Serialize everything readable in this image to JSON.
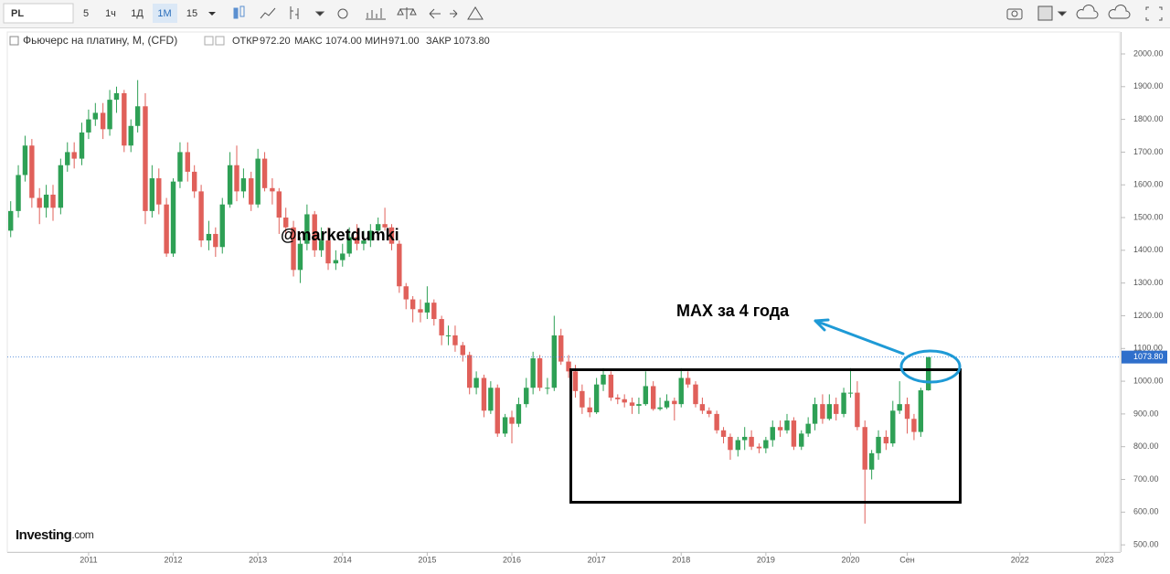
{
  "toolbar": {
    "symbol": "PL",
    "intervals": [
      "5",
      "1ч",
      "1Д",
      "1М",
      "15"
    ]
  },
  "header": {
    "title": "Фьючерс на платину, M, (CFD)",
    "ohlc": [
      {
        "label": "ОТКР",
        "value": "972.20"
      },
      {
        "label": "МАКС",
        "value": "1074.00"
      },
      {
        "label": "МИН",
        "value": "971.00"
      },
      {
        "label": "ЗАКР",
        "value": "1073.80"
      }
    ]
  },
  "logo": {
    "name": "Investing",
    "suffix": ".com"
  },
  "chart_data": {
    "type": "candlestick",
    "annotations": [
      "@marketdumki",
      "MAX за 4 года"
    ],
    "up_color": "#2ea055",
    "down_color": "#e0605a",
    "current_price": {
      "value": 1073.8,
      "label": "1073.80"
    },
    "xlim": [
      2010.04,
      2023.18
    ],
    "ylim": [
      478,
      2067
    ],
    "xticks": [
      2011,
      2012,
      2013,
      2014,
      2015,
      2016,
      2017,
      2018,
      2019,
      2020,
      {
        "value": 2020.67,
        "label": "Сен"
      },
      2022,
      2023
    ],
    "yticks": [
      {
        "value": 500,
        "label": "500.00"
      },
      {
        "value": 600,
        "label": "600.00"
      },
      {
        "value": 700,
        "label": "700.00"
      },
      {
        "value": 800,
        "label": "800.00"
      },
      {
        "value": 900,
        "label": "900.00"
      },
      {
        "value": 1000,
        "label": "1000.00"
      },
      {
        "value": 1100,
        "label": "1100.00"
      },
      {
        "value": 1200,
        "label": "1200.00"
      },
      {
        "value": 1300,
        "label": "1300.00"
      },
      {
        "value": 1400,
        "label": "1400.00"
      },
      {
        "value": 1500,
        "label": "1500.00"
      },
      {
        "value": 1600,
        "label": "1600.00"
      },
      {
        "value": 1700,
        "label": "1700.00"
      },
      {
        "value": 1800,
        "label": "1800.00"
      },
      {
        "value": 1900,
        "label": "1900.00"
      },
      {
        "value": 2000,
        "label": "2000.00"
      }
    ],
    "x": [
      2010.08,
      2010.17,
      2010.25,
      2010.33,
      2010.42,
      2010.5,
      2010.58,
      2010.67,
      2010.75,
      2010.83,
      2010.92,
      2011,
      2011.08,
      2011.17,
      2011.25,
      2011.33,
      2011.42,
      2011.5,
      2011.58,
      2011.67,
      2011.75,
      2011.83,
      2011.92,
      2012,
      2012.08,
      2012.17,
      2012.25,
      2012.33,
      2012.42,
      2012.5,
      2012.58,
      2012.67,
      2012.75,
      2012.83,
      2012.92,
      2013,
      2013.08,
      2013.17,
      2013.25,
      2013.33,
      2013.42,
      2013.5,
      2013.58,
      2013.67,
      2013.75,
      2013.83,
      2013.92,
      2014,
      2014.08,
      2014.17,
      2014.25,
      2014.33,
      2014.42,
      2014.5,
      2014.58,
      2014.67,
      2014.75,
      2014.83,
      2014.92,
      2015,
      2015.08,
      2015.17,
      2015.25,
      2015.33,
      2015.42,
      2015.5,
      2015.58,
      2015.67,
      2015.75,
      2015.83,
      2015.92,
      2016,
      2016.08,
      2016.17,
      2016.25,
      2016.33,
      2016.42,
      2016.5,
      2016.58,
      2016.67,
      2016.75,
      2016.83,
      2016.92,
      2017,
      2017.08,
      2017.17,
      2017.25,
      2017.33,
      2017.42,
      2017.5,
      2017.58,
      2017.67,
      2017.75,
      2017.83,
      2017.92,
      2018,
      2018.08,
      2018.17,
      2018.25,
      2018.33,
      2018.42,
      2018.5,
      2018.58,
      2018.67,
      2018.75,
      2018.83,
      2018.92,
      2019,
      2019.08,
      2019.17,
      2019.25,
      2019.33,
      2019.42,
      2019.5,
      2019.58,
      2019.67,
      2019.75,
      2019.83,
      2019.92,
      2020,
      2020.08,
      2020.17,
      2020.25,
      2020.33,
      2020.42,
      2020.5,
      2020.58,
      2020.67,
      2020.75,
      2020.83,
      2020.92
    ],
    "open": [
      1460,
      1520,
      1630,
      1720,
      1560,
      1530,
      1570,
      1530,
      1660,
      1700,
      1680,
      1760,
      1800,
      1820,
      1770,
      1860,
      1880,
      1720,
      1780,
      1840,
      1520,
      1620,
      1540,
      1390,
      1610,
      1700,
      1640,
      1580,
      1430,
      1450,
      1410,
      1540,
      1660,
      1580,
      1620,
      1540,
      1680,
      1590,
      1580,
      1500,
      1470,
      1340,
      1420,
      1510,
      1400,
      1430,
      1360,
      1370,
      1390,
      1440,
      1420,
      1430,
      1460,
      1480,
      1470,
      1420,
      1290,
      1250,
      1220,
      1210,
      1240,
      1190,
      1140,
      1140,
      1110,
      1080,
      980,
      1010,
      910,
      980,
      840,
      890,
      870,
      930,
      980,
      1070,
      980,
      980,
      1140,
      1060,
      1030,
      970,
      920,
      905,
      990,
      1020,
      950,
      945,
      935,
      925,
      930,
      985,
      915,
      920,
      940,
      930,
      1010,
      990,
      930,
      910,
      900,
      850,
      830,
      790,
      820,
      830,
      800,
      795,
      820,
      860,
      850,
      880,
      800,
      840,
      870,
      930,
      885,
      930,
      900,
      965,
      965,
      860,
      730,
      780,
      830,
      810,
      910,
      930,
      885,
      845,
      972.2
    ],
    "high": [
      1550,
      1660,
      1750,
      1740,
      1590,
      1600,
      1600,
      1680,
      1730,
      1730,
      1790,
      1830,
      1850,
      1850,
      1890,
      1900,
      1890,
      1800,
      1920,
      1880,
      1660,
      1650,
      1560,
      1620,
      1730,
      1730,
      1660,
      1600,
      1490,
      1470,
      1560,
      1700,
      1720,
      1650,
      1640,
      1710,
      1700,
      1620,
      1590,
      1530,
      1490,
      1440,
      1540,
      1520,
      1470,
      1470,
      1400,
      1420,
      1470,
      1480,
      1460,
      1480,
      1500,
      1530,
      1480,
      1430,
      1300,
      1260,
      1250,
      1290,
      1250,
      1200,
      1170,
      1170,
      1120,
      1090,
      1030,
      1020,
      1000,
      990,
      900,
      910,
      950,
      1010,
      1090,
      1080,
      1010,
      1200,
      1160,
      1080,
      1050,
      990,
      950,
      1010,
      1040,
      1030,
      960,
      960,
      950,
      950,
      1030,
      1000,
      950,
      960,
      950,
      1040,
      1030,
      1000,
      950,
      920,
      910,
      860,
      840,
      830,
      860,
      850,
      810,
      830,
      880,
      880,
      900,
      890,
      850,
      890,
      950,
      960,
      960,
      950,
      980,
      1040,
      1000,
      880,
      790,
      850,
      850,
      940,
      1000,
      950,
      900,
      980,
      1074
    ],
    "low": [
      1440,
      1500,
      1610,
      1530,
      1480,
      1500,
      1490,
      1510,
      1640,
      1650,
      1660,
      1740,
      1780,
      1740,
      1750,
      1820,
      1700,
      1700,
      1760,
      1480,
      1500,
      1510,
      1380,
      1380,
      1590,
      1610,
      1560,
      1410,
      1400,
      1380,
      1390,
      1530,
      1550,
      1560,
      1520,
      1530,
      1580,
      1540,
      1450,
      1440,
      1320,
      1300,
      1400,
      1380,
      1380,
      1340,
      1340,
      1350,
      1380,
      1400,
      1400,
      1410,
      1440,
      1460,
      1400,
      1270,
      1220,
      1180,
      1180,
      1190,
      1170,
      1110,
      1110,
      1090,
      1060,
      960,
      960,
      890,
      900,
      830,
      830,
      810,
      860,
      920,
      960,
      970,
      960,
      970,
      1050,
      1010,
      950,
      900,
      890,
      900,
      970,
      940,
      930,
      920,
      900,
      900,
      925,
      910,
      910,
      915,
      880,
      920,
      980,
      920,
      900,
      890,
      840,
      810,
      760,
      770,
      790,
      790,
      780,
      780,
      800,
      830,
      840,
      790,
      790,
      830,
      850,
      870,
      880,
      880,
      890,
      950,
      850,
      565,
      700,
      760,
      790,
      800,
      900,
      840,
      820,
      830,
      971
    ],
    "close": [
      1520,
      1630,
      1720,
      1560,
      1530,
      1570,
      1530,
      1660,
      1700,
      1680,
      1760,
      1800,
      1820,
      1770,
      1860,
      1880,
      1720,
      1780,
      1840,
      1520,
      1620,
      1540,
      1390,
      1610,
      1700,
      1640,
      1580,
      1430,
      1450,
      1410,
      1540,
      1660,
      1580,
      1620,
      1540,
      1680,
      1590,
      1580,
      1500,
      1470,
      1340,
      1420,
      1510,
      1400,
      1430,
      1360,
      1370,
      1390,
      1440,
      1420,
      1430,
      1460,
      1480,
      1470,
      1420,
      1290,
      1250,
      1220,
      1210,
      1240,
      1190,
      1140,
      1140,
      1110,
      1080,
      980,
      1010,
      910,
      980,
      840,
      890,
      870,
      930,
      980,
      1070,
      980,
      980,
      1140,
      1060,
      1030,
      970,
      920,
      905,
      990,
      1020,
      950,
      945,
      935,
      925,
      930,
      985,
      915,
      920,
      940,
      930,
      1010,
      990,
      930,
      910,
      900,
      850,
      830,
      790,
      820,
      830,
      800,
      795,
      820,
      860,
      850,
      880,
      800,
      840,
      870,
      930,
      885,
      930,
      900,
      965,
      965,
      860,
      730,
      780,
      830,
      810,
      910,
      930,
      885,
      845,
      972.2,
      1073.8
    ]
  }
}
